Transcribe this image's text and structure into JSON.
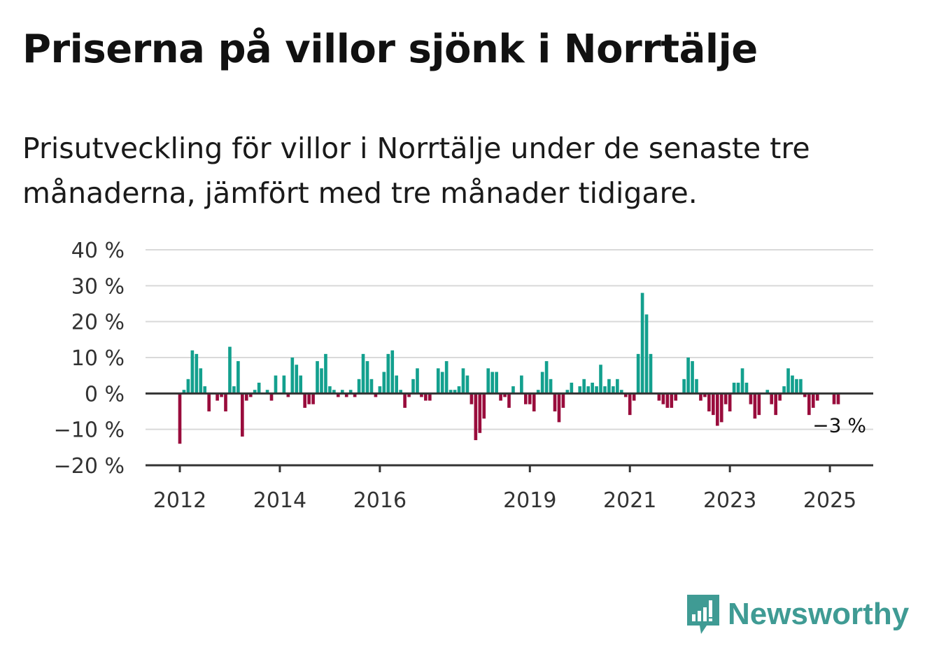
{
  "title": "Priserna på villor sjönk i Norrtälje",
  "subtitle": "Prisutveckling för villor i Norrtälje under de senaste tre månaderna, jämfört med tre månader tidigare.",
  "brand": {
    "name": "Newsworthy",
    "color": "#3f9b94"
  },
  "colors": {
    "positive": "#13a08e",
    "negative": "#990c3c",
    "grid": "#d9d9d9",
    "zero_line": "#333333"
  },
  "chart_data": {
    "type": "bar",
    "y_unit": "%",
    "ylim": [
      -20,
      40
    ],
    "y_ticks": [
      40,
      30,
      20,
      10,
      0,
      -10,
      -20
    ],
    "y_tick_labels": [
      "40 %",
      "30 %",
      "20 %",
      "10 %",
      "0 %",
      "−10 %",
      "−20 %"
    ],
    "x_tick_labels": [
      "2012",
      "2014",
      "2016",
      "2019",
      "2021",
      "2023",
      "2025"
    ],
    "x_tick_years": [
      2012,
      2014,
      2016,
      2019,
      2021,
      2023,
      2025
    ],
    "x_start": 2012.0,
    "x_step_months": 1,
    "grid": true,
    "last_value_label": "−3 %",
    "values": [
      -14,
      1,
      4,
      12,
      11,
      7,
      2,
      -5,
      0,
      -2,
      -1,
      -5,
      13,
      2,
      9,
      -12,
      -2,
      -1,
      1,
      3,
      0,
      1,
      -2,
      5,
      0,
      5,
      -1,
      10,
      8,
      5,
      -4,
      -3,
      -3,
      9,
      7,
      11,
      2,
      1,
      -1,
      1,
      -1,
      1,
      -1,
      4,
      11,
      9,
      4,
      -1,
      2,
      6,
      11,
      12,
      5,
      1,
      -4,
      -1,
      4,
      7,
      -1,
      -2,
      -2,
      0,
      7,
      6,
      9,
      1,
      1,
      2,
      7,
      5,
      -3,
      -13,
      -11,
      -7,
      7,
      6,
      6,
      -2,
      -1,
      -4,
      2,
      0,
      5,
      -3,
      -3,
      -5,
      1,
      6,
      9,
      4,
      -5,
      -8,
      -4,
      1,
      3,
      0,
      2,
      4,
      2,
      3,
      2,
      8,
      2,
      4,
      2,
      4,
      1,
      -1,
      -6,
      -2,
      11,
      28,
      22,
      11,
      0,
      -2,
      -3,
      -4,
      -4,
      -2,
      0,
      4,
      10,
      9,
      4,
      -2,
      -1,
      -5,
      -6,
      -9,
      -8,
      -3,
      -5,
      3,
      3,
      7,
      3,
      -3,
      -7,
      -6,
      0,
      1,
      -3,
      -6,
      -2,
      2,
      7,
      5,
      4,
      4,
      -1,
      -6,
      -4,
      -2,
      0,
      0,
      0,
      -3,
      -3
    ]
  }
}
